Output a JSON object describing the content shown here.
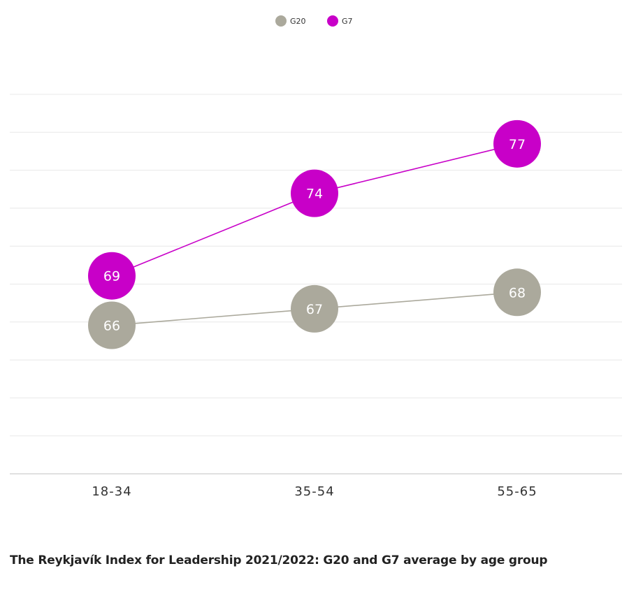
{
  "caption": "The Reykjavík Index for Leadership 2021/2022:  G20 and G7 average by age group",
  "chart_data": {
    "type": "line",
    "categories": [
      "18-34",
      "35-54",
      "55-65"
    ],
    "series": [
      {
        "name": "G20",
        "values": [
          66,
          67,
          68
        ],
        "color": "#aba99c"
      },
      {
        "name": "G7",
        "values": [
          69,
          74,
          77
        ],
        "color": "#c800c8"
      }
    ],
    "ylim": [
      57,
      80
    ],
    "grid": true,
    "legend": "top-center",
    "xlabel": "",
    "ylabel": ""
  }
}
